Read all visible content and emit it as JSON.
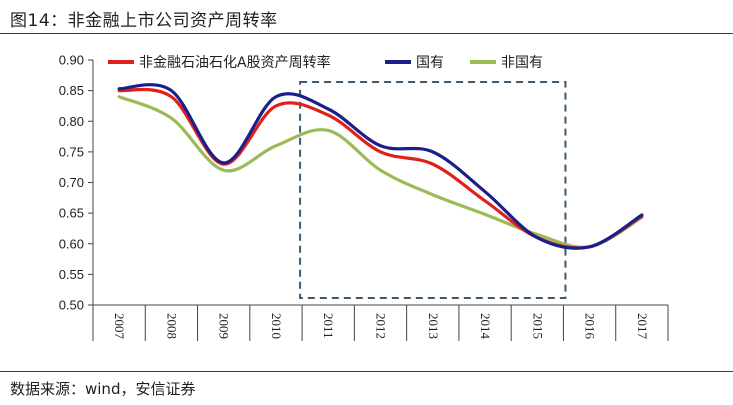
{
  "header": {
    "title": "图14：非金融上市公司资产周转率"
  },
  "footer": {
    "source": "数据来源：wind，安信证券"
  },
  "chart_data": {
    "type": "line",
    "x": [
      "2007",
      "2008",
      "2009",
      "2010",
      "2011",
      "2012",
      "2013",
      "2014",
      "2015",
      "2016",
      "2017"
    ],
    "ylim": [
      0.5,
      0.9
    ],
    "yticks": [
      "0.50",
      "0.55",
      "0.60",
      "0.65",
      "0.70",
      "0.75",
      "0.80",
      "0.85",
      "0.90"
    ],
    "legend_position": "top",
    "series": [
      {
        "name": "非金融石油石化A股资产周转率",
        "color": "#e0201b",
        "values": [
          0.85,
          0.84,
          0.73,
          0.825,
          0.81,
          0.75,
          0.73,
          0.67,
          0.61,
          0.595,
          0.645
        ]
      },
      {
        "name": "国有",
        "color": "#1a1f8c",
        "values": [
          0.853,
          0.85,
          0.732,
          0.84,
          0.82,
          0.76,
          0.75,
          0.685,
          0.61,
          0.595,
          0.647
        ]
      },
      {
        "name": "非国有",
        "color": "#9bbb59",
        "values": [
          0.84,
          0.805,
          0.72,
          0.76,
          0.785,
          0.72,
          0.68,
          0.648,
          0.615,
          0.595,
          0.643
        ]
      }
    ],
    "highlight_box": {
      "x_start": "2011",
      "x_end": "2015",
      "style": "dashed"
    }
  }
}
